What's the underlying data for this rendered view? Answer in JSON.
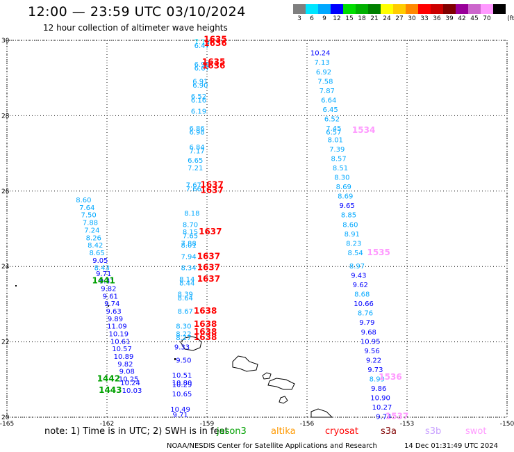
{
  "title": "12:00 — 23:59 UTC 03/10/2024",
  "subtitle": "12 hour collection of altimeter wave heights",
  "legend": {
    "unit": "(ft)",
    "bins": [
      {
        "label": "3",
        "color": "#7f7f7f"
      },
      {
        "label": "6",
        "color": "#00e5ff"
      },
      {
        "label": "9",
        "color": "#00a8ff"
      },
      {
        "label": "12",
        "color": "#0000ff"
      },
      {
        "label": "15",
        "color": "#00dd00"
      },
      {
        "label": "18",
        "color": "#00b000"
      },
      {
        "label": "21",
        "color": "#008000"
      },
      {
        "label": "24",
        "color": "#ffff00"
      },
      {
        "label": "27",
        "color": "#ffcc00"
      },
      {
        "label": "30",
        "color": "#ff8800"
      },
      {
        "label": "33",
        "color": "#ff0000"
      },
      {
        "label": "36",
        "color": "#cc0000"
      },
      {
        "label": "39",
        "color": "#800000"
      },
      {
        "label": "42",
        "color": "#990099"
      },
      {
        "label": "45",
        "color": "#cc66cc"
      },
      {
        "label": "70",
        "color": "#ff99ff"
      },
      {
        "label": "",
        "color": "#000000"
      }
    ]
  },
  "axes": {
    "lat_ticks": [
      "30",
      "28",
      "26",
      "24",
      "22",
      "20"
    ],
    "lon_ticks": [
      "-165",
      "-162",
      "-159",
      "-156",
      "-153",
      "-150"
    ],
    "lat_range": [
      20,
      30
    ],
    "lon_range": [
      -165,
      -150
    ],
    "grid": true
  },
  "satellites": [
    {
      "name": "jason3",
      "color": "#00a000"
    },
    {
      "name": "altika",
      "color": "#ff9900"
    },
    {
      "name": "cryosat",
      "color": "#ff0000"
    },
    {
      "name": "s3a",
      "color": "#800000"
    },
    {
      "name": "s3b",
      "color": "#c8a0ff"
    },
    {
      "name": "swot",
      "color": "#ff99ff"
    }
  ],
  "note": "note: 1) Time is in UTC; 2) SWH is in feet",
  "credit": "NOAA/NESDIS Center for Satellite Applications and Research",
  "timestamp": "14 Dec 01:31:49 UTC 2024",
  "observations": [
    {
      "lon": -162.7,
      "lat": 25.7,
      "v": "8.60",
      "c": "#00a8ff"
    },
    {
      "lon": -162.6,
      "lat": 25.5,
      "v": "7.64",
      "c": "#00a8ff"
    },
    {
      "lon": -162.55,
      "lat": 25.3,
      "v": "7.50",
      "c": "#00a8ff"
    },
    {
      "lon": -162.5,
      "lat": 25.1,
      "v": "7.88",
      "c": "#00a8ff"
    },
    {
      "lon": -162.45,
      "lat": 24.9,
      "v": "7.24",
      "c": "#00a8ff"
    },
    {
      "lon": -162.4,
      "lat": 24.7,
      "v": "8.26",
      "c": "#00a8ff"
    },
    {
      "lon": -162.35,
      "lat": 24.5,
      "v": "8.42",
      "c": "#00a8ff"
    },
    {
      "lon": -162.3,
      "lat": 24.3,
      "v": "8.65",
      "c": "#00a8ff"
    },
    {
      "lon": -162.2,
      "lat": 24.1,
      "v": "9.05",
      "c": "#0000ff"
    },
    {
      "lon": -162.15,
      "lat": 23.9,
      "v": "8.43",
      "c": "#00a8ff"
    },
    {
      "lon": -162.1,
      "lat": 23.75,
      "v": "9.71",
      "c": "#0000ff"
    },
    {
      "lon": -162.0,
      "lat": 23.55,
      "v": "9.41",
      "c": "#0000ff"
    },
    {
      "lon": -161.95,
      "lat": 23.35,
      "v": "9.82",
      "c": "#0000ff"
    },
    {
      "lon": -161.9,
      "lat": 23.15,
      "v": "9.61",
      "c": "#0000ff"
    },
    {
      "lon": -161.85,
      "lat": 22.95,
      "v": "9.74",
      "c": "#0000ff"
    },
    {
      "lon": -161.8,
      "lat": 22.75,
      "v": "9.63",
      "c": "#0000ff"
    },
    {
      "lon": -161.75,
      "lat": 22.55,
      "v": "9.89",
      "c": "#0000ff"
    },
    {
      "lon": -161.7,
      "lat": 22.35,
      "v": "11.09",
      "c": "#0000ff"
    },
    {
      "lon": -161.65,
      "lat": 22.15,
      "v": "10.19",
      "c": "#0000ff"
    },
    {
      "lon": -161.6,
      "lat": 21.95,
      "v": "10.61",
      "c": "#0000ff"
    },
    {
      "lon": -161.55,
      "lat": 21.75,
      "v": "10.57",
      "c": "#0000ff"
    },
    {
      "lon": -161.5,
      "lat": 21.55,
      "v": "10.89",
      "c": "#0000ff"
    },
    {
      "lon": -161.45,
      "lat": 21.35,
      "v": "9.82",
      "c": "#0000ff"
    },
    {
      "lon": -161.4,
      "lat": 21.15,
      "v": "9.08",
      "c": "#0000ff"
    },
    {
      "lon": -161.35,
      "lat": 20.95,
      "v": "10.25",
      "c": "#0000ff"
    },
    {
      "lon": -161.3,
      "lat": 20.85,
      "v": "10.24",
      "c": "#0000ff"
    },
    {
      "lon": -161.25,
      "lat": 20.65,
      "v": "10.03",
      "c": "#0000ff"
    },
    {
      "lon": -162.1,
      "lat": 23.55,
      "v": "1441",
      "c": "#00a000",
      "id": true
    },
    {
      "lon": -161.95,
      "lat": 20.95,
      "v": "1442",
      "c": "#00a000",
      "id": true
    },
    {
      "lon": -161.9,
      "lat": 20.65,
      "v": "1443",
      "c": "#00a000",
      "id": true
    },
    {
      "lon": -159.15,
      "lat": 29.9,
      "v": "7.19",
      "c": "#00e5ff"
    },
    {
      "lon": -159.15,
      "lat": 29.8,
      "v": "6.47",
      "c": "#00a8ff"
    },
    {
      "lon": -159.15,
      "lat": 29.3,
      "v": "6.98",
      "c": "#00a8ff"
    },
    {
      "lon": -159.15,
      "lat": 29.2,
      "v": "6.67",
      "c": "#00a8ff"
    },
    {
      "lon": -159.2,
      "lat": 28.85,
      "v": "6.91",
      "c": "#00a8ff"
    },
    {
      "lon": -159.2,
      "lat": 28.75,
      "v": "6.90",
      "c": "#00a8ff"
    },
    {
      "lon": -159.25,
      "lat": 28.45,
      "v": "6.52",
      "c": "#00a8ff"
    },
    {
      "lon": -159.25,
      "lat": 28.35,
      "v": "6.16",
      "c": "#00a8ff"
    },
    {
      "lon": -159.25,
      "lat": 28.05,
      "v": "6.19",
      "c": "#00a8ff"
    },
    {
      "lon": -159.3,
      "lat": 27.6,
      "v": "6.86",
      "c": "#00a8ff"
    },
    {
      "lon": -159.3,
      "lat": 27.5,
      "v": "6.98",
      "c": "#00a8ff"
    },
    {
      "lon": -159.3,
      "lat": 27.1,
      "v": "6.84",
      "c": "#00a8ff"
    },
    {
      "lon": -159.3,
      "lat": 27.0,
      "v": "7.17",
      "c": "#00a8ff"
    },
    {
      "lon": -159.35,
      "lat": 26.75,
      "v": "6.65",
      "c": "#00a8ff"
    },
    {
      "lon": -159.35,
      "lat": 26.55,
      "v": "7.21",
      "c": "#00a8ff"
    },
    {
      "lon": -159.4,
      "lat": 26.1,
      "v": "7.67",
      "c": "#00a8ff"
    },
    {
      "lon": -159.4,
      "lat": 26.0,
      "v": "7.66",
      "c": "#00a8ff"
    },
    {
      "lon": -159.45,
      "lat": 25.35,
      "v": "8.18",
      "c": "#00a8ff"
    },
    {
      "lon": -159.5,
      "lat": 25.05,
      "v": "8.70",
      "c": "#00a8ff"
    },
    {
      "lon": -159.5,
      "lat": 24.85,
      "v": "8.15",
      "c": "#00a8ff"
    },
    {
      "lon": -159.5,
      "lat": 24.75,
      "v": "7.65",
      "c": "#00a8ff"
    },
    {
      "lon": -159.55,
      "lat": 24.55,
      "v": "7.88",
      "c": "#00a8ff"
    },
    {
      "lon": -159.55,
      "lat": 24.5,
      "v": "8.01",
      "c": "#00a8ff"
    },
    {
      "lon": -159.55,
      "lat": 24.2,
      "v": "7.94",
      "c": "#00a8ff"
    },
    {
      "lon": -159.55,
      "lat": 23.9,
      "v": "8.34",
      "c": "#00a8ff"
    },
    {
      "lon": -159.6,
      "lat": 23.6,
      "v": "8.14",
      "c": "#00a8ff"
    },
    {
      "lon": -159.6,
      "lat": 23.5,
      "v": "8.44",
      "c": "#00a8ff"
    },
    {
      "lon": -159.65,
      "lat": 23.2,
      "v": "8.39",
      "c": "#00a8ff"
    },
    {
      "lon": -159.65,
      "lat": 23.1,
      "v": "8.64",
      "c": "#00a8ff"
    },
    {
      "lon": -159.65,
      "lat": 22.75,
      "v": "8.67",
      "c": "#00a8ff"
    },
    {
      "lon": -159.7,
      "lat": 22.35,
      "v": "8.30",
      "c": "#00a8ff"
    },
    {
      "lon": -159.7,
      "lat": 22.15,
      "v": "8.22",
      "c": "#00a8ff"
    },
    {
      "lon": -159.7,
      "lat": 22.05,
      "v": "8.27",
      "c": "#00a8ff"
    },
    {
      "lon": -159.75,
      "lat": 21.8,
      "v": "9.33",
      "c": "#0000ff"
    },
    {
      "lon": -159.7,
      "lat": 21.45,
      "v": "9.50",
      "c": "#0000ff"
    },
    {
      "lon": -159.75,
      "lat": 21.05,
      "v": "10.51",
      "c": "#0000ff"
    },
    {
      "lon": -159.75,
      "lat": 20.85,
      "v": "10.80",
      "c": "#0000ff"
    },
    {
      "lon": -159.75,
      "lat": 20.8,
      "v": "10.29",
      "c": "#0000ff"
    },
    {
      "lon": -159.75,
      "lat": 20.55,
      "v": "10.65",
      "c": "#0000ff"
    },
    {
      "lon": -159.8,
      "lat": 20.15,
      "v": "10.49",
      "c": "#0000ff"
    },
    {
      "lon": -159.8,
      "lat": 20.0,
      "v": "9.71",
      "c": "#0000ff"
    },
    {
      "lon": -158.75,
      "lat": 29.95,
      "v": "1635",
      "c": "#ff0000",
      "id": true
    },
    {
      "lon": -158.75,
      "lat": 29.85,
      "v": "1636",
      "c": "#ff0000",
      "id": true
    },
    {
      "lon": -158.8,
      "lat": 29.35,
      "v": "1635",
      "c": "#ff0000",
      "id": true
    },
    {
      "lon": -158.8,
      "lat": 29.25,
      "v": "1636",
      "c": "#ff0000",
      "id": true
    },
    {
      "lon": -158.85,
      "lat": 26.1,
      "v": "1637",
      "c": "#ff0000",
      "id": true
    },
    {
      "lon": -158.85,
      "lat": 25.95,
      "v": "1637",
      "c": "#ff0000",
      "id": true
    },
    {
      "lon": -158.9,
      "lat": 24.85,
      "v": "1637",
      "c": "#ff0000",
      "id": true
    },
    {
      "lon": -158.95,
      "lat": 24.2,
      "v": "1637",
      "c": "#ff0000",
      "id": true
    },
    {
      "lon": -158.95,
      "lat": 23.9,
      "v": "1637",
      "c": "#ff0000",
      "id": true
    },
    {
      "lon": -158.95,
      "lat": 23.6,
      "v": "1637",
      "c": "#ff0000",
      "id": true
    },
    {
      "lon": -159.05,
      "lat": 22.75,
      "v": "1638",
      "c": "#ff0000",
      "id": true
    },
    {
      "lon": -159.05,
      "lat": 22.4,
      "v": "1638",
      "c": "#ff0000",
      "id": true
    },
    {
      "lon": -159.05,
      "lat": 22.2,
      "v": "1638",
      "c": "#ff0000",
      "id": true
    },
    {
      "lon": -159.05,
      "lat": 22.05,
      "v": "1638",
      "c": "#ff0000",
      "id": true
    },
    {
      "lon": -155.6,
      "lat": 29.6,
      "v": "10.24",
      "c": "#0000ff"
    },
    {
      "lon": -155.55,
      "lat": 29.35,
      "v": "7.13",
      "c": "#00a8ff"
    },
    {
      "lon": -155.5,
      "lat": 29.1,
      "v": "6.92",
      "c": "#00a8ff"
    },
    {
      "lon": -155.45,
      "lat": 28.85,
      "v": "7.58",
      "c": "#00a8ff"
    },
    {
      "lon": -155.4,
      "lat": 28.6,
      "v": "7.87",
      "c": "#00a8ff"
    },
    {
      "lon": -155.35,
      "lat": 28.35,
      "v": "6.64",
      "c": "#00a8ff"
    },
    {
      "lon": -155.3,
      "lat": 28.1,
      "v": "6.45",
      "c": "#00a8ff"
    },
    {
      "lon": -155.25,
      "lat": 27.85,
      "v": "6.52",
      "c": "#00a8ff"
    },
    {
      "lon": -155.2,
      "lat": 27.6,
      "v": "7.45",
      "c": "#00a8ff"
    },
    {
      "lon": -155.2,
      "lat": 27.5,
      "v": "6.57",
      "c": "#00a8ff"
    },
    {
      "lon": -155.15,
      "lat": 27.3,
      "v": "8.01",
      "c": "#00a8ff"
    },
    {
      "lon": -155.1,
      "lat": 27.05,
      "v": "7.39",
      "c": "#00a8ff"
    },
    {
      "lon": -155.05,
      "lat": 26.8,
      "v": "8.57",
      "c": "#00a8ff"
    },
    {
      "lon": -155.0,
      "lat": 26.55,
      "v": "8.51",
      "c": "#00a8ff"
    },
    {
      "lon": -154.95,
      "lat": 26.3,
      "v": "8.30",
      "c": "#00a8ff"
    },
    {
      "lon": -154.9,
      "lat": 26.05,
      "v": "8.69",
      "c": "#00a8ff"
    },
    {
      "lon": -154.85,
      "lat": 25.8,
      "v": "8.69",
      "c": "#00a8ff"
    },
    {
      "lon": -154.8,
      "lat": 25.55,
      "v": "9.65",
      "c": "#0000ff"
    },
    {
      "lon": -154.75,
      "lat": 25.3,
      "v": "8.85",
      "c": "#00a8ff"
    },
    {
      "lon": -154.7,
      "lat": 25.05,
      "v": "8.60",
      "c": "#00a8ff"
    },
    {
      "lon": -154.65,
      "lat": 24.8,
      "v": "8.91",
      "c": "#00a8ff"
    },
    {
      "lon": -154.6,
      "lat": 24.55,
      "v": "8.23",
      "c": "#00a8ff"
    },
    {
      "lon": -154.55,
      "lat": 24.3,
      "v": "8.54",
      "c": "#00a8ff"
    },
    {
      "lon": -154.5,
      "lat": 23.95,
      "v": "8.97",
      "c": "#00a8ff"
    },
    {
      "lon": -154.45,
      "lat": 23.7,
      "v": "9.43",
      "c": "#0000ff"
    },
    {
      "lon": -154.4,
      "lat": 23.45,
      "v": "9.62",
      "c": "#0000ff"
    },
    {
      "lon": -154.35,
      "lat": 23.2,
      "v": "8.68",
      "c": "#00a8ff"
    },
    {
      "lon": -154.3,
      "lat": 22.95,
      "v": "10.66",
      "c": "#0000ff"
    },
    {
      "lon": -154.25,
      "lat": 22.7,
      "v": "8.76",
      "c": "#00a8ff"
    },
    {
      "lon": -154.2,
      "lat": 22.45,
      "v": "9.79",
      "c": "#0000ff"
    },
    {
      "lon": -154.15,
      "lat": 22.2,
      "v": "9.68",
      "c": "#0000ff"
    },
    {
      "lon": -154.1,
      "lat": 21.95,
      "v": "10.95",
      "c": "#0000ff"
    },
    {
      "lon": -154.05,
      "lat": 21.7,
      "v": "9.56",
      "c": "#0000ff"
    },
    {
      "lon": -154.0,
      "lat": 21.45,
      "v": "9.22",
      "c": "#0000ff"
    },
    {
      "lon": -153.95,
      "lat": 21.2,
      "v": "9.73",
      "c": "#0000ff"
    },
    {
      "lon": -153.9,
      "lat": 20.95,
      "v": "8.99",
      "c": "#00a8ff"
    },
    {
      "lon": -153.85,
      "lat": 20.7,
      "v": "9.86",
      "c": "#0000ff"
    },
    {
      "lon": -153.8,
      "lat": 20.45,
      "v": "10.90",
      "c": "#0000ff"
    },
    {
      "lon": -153.75,
      "lat": 20.2,
      "v": "10.27",
      "c": "#0000ff"
    },
    {
      "lon": -153.7,
      "lat": 19.95,
      "v": "9.74",
      "c": "#0000ff"
    },
    {
      "lon": -154.3,
      "lat": 27.55,
      "v": "1534",
      "c": "#ff99ff",
      "id": true
    },
    {
      "lon": -153.85,
      "lat": 24.3,
      "v": "1535",
      "c": "#ff99ff",
      "id": true
    },
    {
      "lon": -153.5,
      "lat": 21.0,
      "v": "1536",
      "c": "#ff99ff",
      "id": true
    },
    {
      "lon": -153.3,
      "lat": 19.95,
      "v": "1537",
      "c": "#ff99ff",
      "id": true
    }
  ]
}
